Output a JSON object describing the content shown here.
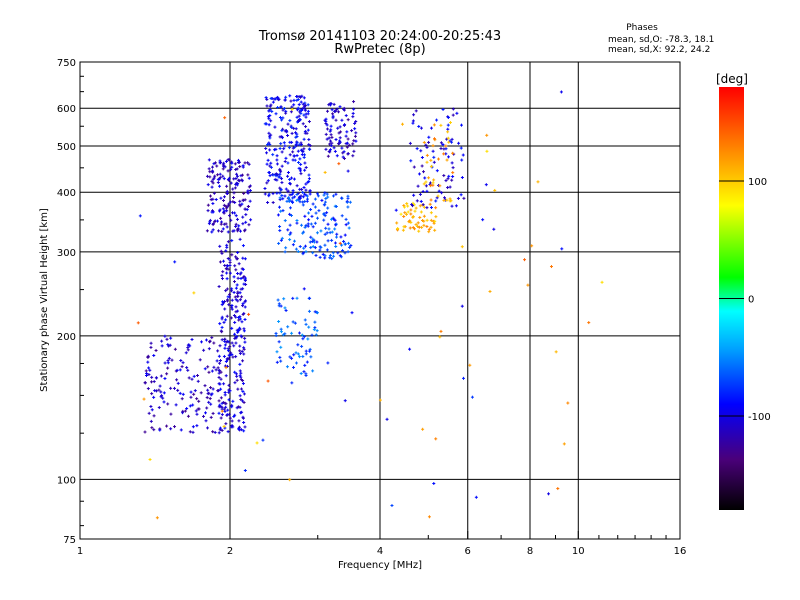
{
  "chart_data": {
    "type": "scatter",
    "title": "Tromsø 20141103 20:24:00-20:25:43",
    "subtitle": "RwPretec (8p)",
    "xlabel": "Frequency [MHz]",
    "ylabel": "Stationary phase Virtual Height [km]",
    "x_scale": "log",
    "y_scale": "log",
    "xlim": [
      1,
      16
    ],
    "ylim": [
      75,
      750
    ],
    "x_ticks": [
      1,
      2,
      4,
      6,
      8,
      10,
      16
    ],
    "y_ticks": [
      75,
      100,
      200,
      300,
      400,
      500,
      600,
      750
    ],
    "grid": true,
    "legend_info": {
      "heading": "Phases",
      "line1": "mean, sd,O: -78.3, 18.1",
      "line2": "mean, sd,X: 92.2, 24.2"
    },
    "colorbar": {
      "label": "[deg]",
      "ticks": [
        100,
        0,
        -100
      ],
      "range": [
        -180,
        180
      ],
      "colormap": "rainbow"
    },
    "point_size_note": "small crosses",
    "clusters": [
      {
        "x_range": [
          1.9,
          2.15
        ],
        "y_range": [
          125,
          320
        ],
        "phase": -105,
        "count": 260
      },
      {
        "x_range": [
          1.35,
          1.95
        ],
        "y_range": [
          125,
          200
        ],
        "phase": -110,
        "count": 170
      },
      {
        "x_range": [
          1.8,
          2.2
        ],
        "y_range": [
          330,
          470
        ],
        "phase": -110,
        "count": 180
      },
      {
        "x_range": [
          2.35,
          2.9
        ],
        "y_range": [
          380,
          640
        ],
        "phase": -95,
        "count": 260
      },
      {
        "x_range": [
          2.5,
          3.5
        ],
        "y_range": [
          290,
          400
        ],
        "phase": -70,
        "count": 170
      },
      {
        "x_range": [
          3.1,
          3.6
        ],
        "y_range": [
          470,
          620
        ],
        "phase": -110,
        "count": 90
      },
      {
        "x_range": [
          2.45,
          3.0
        ],
        "y_range": [
          165,
          240
        ],
        "phase": -65,
        "count": 70
      },
      {
        "x_range": [
          4.3,
          5.2
        ],
        "y_range": [
          330,
          380
        ],
        "phase": 110,
        "count": 60
      },
      {
        "x_range": [
          4.6,
          5.9
        ],
        "y_range": [
          370,
          600
        ],
        "phase": -100,
        "count": 90
      },
      {
        "x_range": [
          4.9,
          5.6
        ],
        "y_range": [
          380,
          580
        ],
        "phase": 115,
        "count": 35
      },
      {
        "x_range": [
          1.3,
          12.0
        ],
        "y_range": [
          80,
          650
        ],
        "phase": 0,
        "count": 70
      }
    ]
  }
}
